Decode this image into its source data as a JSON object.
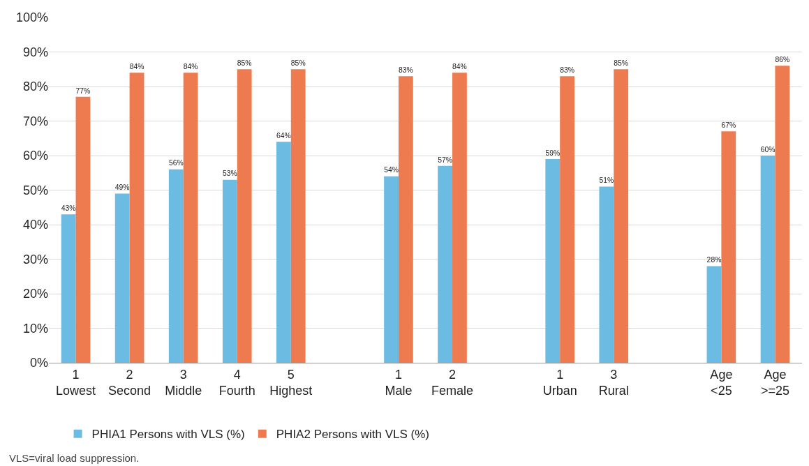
{
  "chart_data": {
    "type": "bar",
    "categories": [
      "1\nLowest",
      "2\nSecond",
      "3\nMiddle",
      "4\nFourth",
      "5\nHighest",
      null,
      "1\nMale",
      "2\nFemale",
      null,
      "1\nUrban",
      "3\nRural",
      null,
      "Age\n<25",
      "Age\n>=25"
    ],
    "series": [
      {
        "name": "PHIA1 Persons with VLS (%)",
        "color": "#6cbbe2",
        "values": [
          43,
          49,
          56,
          53,
          64,
          null,
          54,
          57,
          null,
          59,
          51,
          null,
          28,
          60
        ],
        "value_labels": [
          "43%",
          "49%",
          "56%",
          "53%",
          "64%",
          null,
          "54%",
          "57%",
          null,
          "59%",
          "51%",
          null,
          "28%",
          "60%"
        ]
      },
      {
        "name": "PHIA2 Persons with VLS (%)",
        "color": "#ee7b50",
        "values": [
          77,
          84,
          84,
          85,
          85,
          null,
          83,
          84,
          null,
          83,
          85,
          null,
          67,
          86
        ],
        "value_labels": [
          "77%",
          "84%",
          "84%",
          "85%",
          "85%",
          null,
          "83%",
          "84%",
          null,
          "83%",
          "85%",
          null,
          "67%",
          "86%"
        ]
      }
    ],
    "ylim": [
      0,
      100
    ],
    "yticks": [
      {
        "value": 0,
        "label": "0%"
      },
      {
        "value": 10,
        "label": "10%"
      },
      {
        "value": 20,
        "label": "20%"
      },
      {
        "value": 30,
        "label": "30%"
      },
      {
        "value": 40,
        "label": "40%"
      },
      {
        "value": 50,
        "label": "50%"
      },
      {
        "value": 60,
        "label": "60%"
      },
      {
        "value": 70,
        "label": "70%"
      },
      {
        "value": 80,
        "label": "80%"
      },
      {
        "value": 90,
        "label": "90%"
      },
      {
        "value": 100,
        "label": "100%"
      }
    ],
    "grid": "y",
    "legend": "bottom",
    "annotations": [
      "VLS=viral load suppression."
    ]
  }
}
